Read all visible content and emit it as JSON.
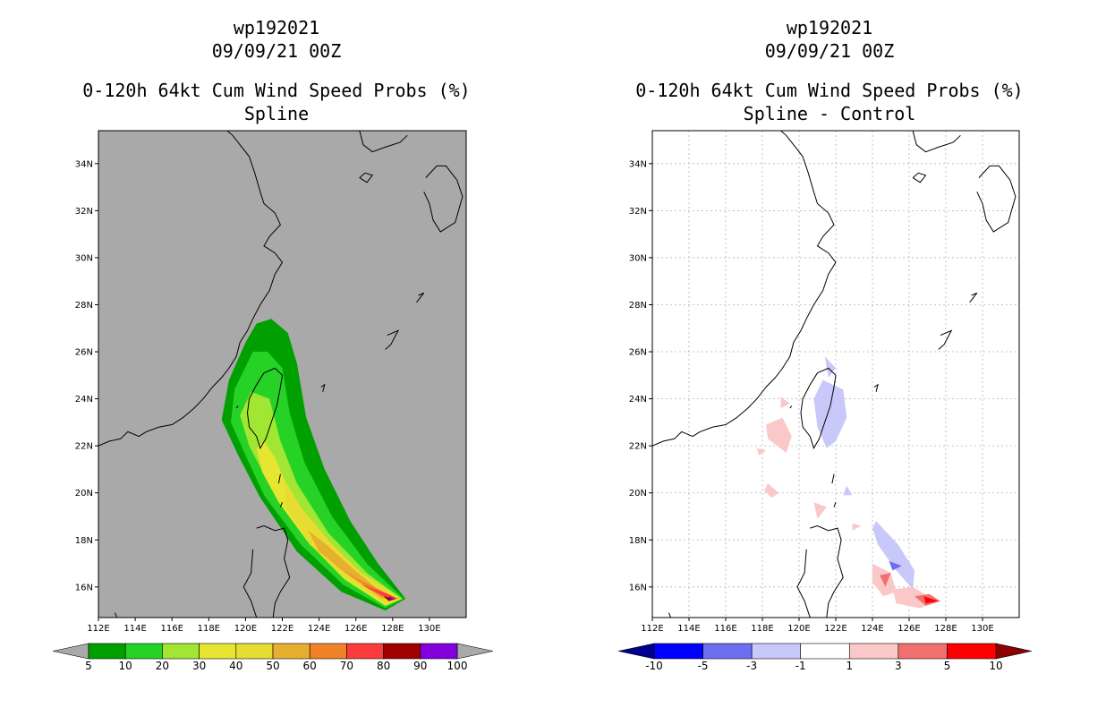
{
  "left_panel": {
    "title_lines": [
      "wp192021",
      "09/09/21 00Z",
      "",
      "0-120h 64kt Cum Wind Speed Probs (%)",
      "Spline"
    ]
  },
  "right_panel": {
    "title_lines": [
      "wp192021",
      "09/09/21 00Z",
      "",
      "0-120h 64kt Cum Wind Speed Probs (%)",
      "Spline - Control"
    ]
  },
  "chart_data": [
    {
      "type": "heatmap",
      "name": "spline-probability-map",
      "title": "0-120h 64kt Cum Wind Speed Probs (%) - Spline",
      "storm": "wp192021",
      "datetime": "09/09/21 00Z",
      "xlim": [
        112,
        132
      ],
      "ylim": [
        14.7,
        35.4
      ],
      "x_ticks": [
        112,
        114,
        116,
        118,
        120,
        122,
        124,
        126,
        128,
        130
      ],
      "x_tick_labels": [
        "112E",
        "114E",
        "116E",
        "118E",
        "120E",
        "122E",
        "124E",
        "126E",
        "128E",
        "130E"
      ],
      "y_ticks": [
        16,
        18,
        20,
        22,
        24,
        26,
        28,
        30,
        32,
        34
      ],
      "y_tick_labels": [
        "16N",
        "18N",
        "20N",
        "22N",
        "24N",
        "26N",
        "28N",
        "30N",
        "32N",
        "34N"
      ],
      "grid": false,
      "background": "#a9a9a9",
      "colorbar": {
        "labels": [
          "5",
          "10",
          "20",
          "30",
          "40",
          "50",
          "60",
          "70",
          "80",
          "90",
          "100"
        ],
        "colors": [
          "#00a000",
          "#26d226",
          "#a0e632",
          "#e6e632",
          "#e6dc32",
          "#e6af2d",
          "#f08228",
          "#fa3c3c",
          "#a00000",
          "#8200dc"
        ],
        "end_colors": [
          "#a9a9a9",
          "#a9a9a9"
        ]
      },
      "contour_levels": [
        {
          "level": 5,
          "color": "#00a000",
          "path": [
            [
              120.6,
              27.2
            ],
            [
              121.4,
              27.4
            ],
            [
              122.3,
              26.8
            ],
            [
              122.8,
              25.5
            ],
            [
              123.3,
              23.2
            ],
            [
              124.3,
              21.0
            ],
            [
              125.7,
              18.8
            ],
            [
              127.2,
              17.0
            ],
            [
              128.7,
              15.5
            ],
            [
              127.6,
              15.0
            ],
            [
              125.2,
              15.8
            ],
            [
              122.8,
              17.5
            ],
            [
              120.8,
              19.8
            ],
            [
              119.6,
              21.6
            ],
            [
              118.7,
              23.1
            ],
            [
              119.1,
              24.8
            ],
            [
              120.0,
              26.4
            ]
          ]
        },
        {
          "level": 10,
          "color": "#26d226",
          "path": [
            [
              120.4,
              26.0
            ],
            [
              121.2,
              26.0
            ],
            [
              122.0,
              25.3
            ],
            [
              122.4,
              23.4
            ],
            [
              123.2,
              21.3
            ],
            [
              124.7,
              19.0
            ],
            [
              126.6,
              17.0
            ],
            [
              128.6,
              15.5
            ],
            [
              127.6,
              15.1
            ],
            [
              125.3,
              16.1
            ],
            [
              123.0,
              17.8
            ],
            [
              121.0,
              19.9
            ],
            [
              120.0,
              21.6
            ],
            [
              119.2,
              23.0
            ],
            [
              119.4,
              24.4
            ]
          ]
        },
        {
          "level": 20,
          "color": "#a0e632",
          "path": [
            [
              120.3,
              24.3
            ],
            [
              121.3,
              24.0
            ],
            [
              121.9,
              22.2
            ],
            [
              122.8,
              20.4
            ],
            [
              124.5,
              18.3
            ],
            [
              126.6,
              16.6
            ],
            [
              128.5,
              15.5
            ],
            [
              127.6,
              15.2
            ],
            [
              125.4,
              16.3
            ],
            [
              123.3,
              18.0
            ],
            [
              121.4,
              20.2
            ],
            [
              120.2,
              22.0
            ],
            [
              119.7,
              23.3
            ]
          ]
        },
        {
          "level": 30,
          "color": "#e6e632",
          "path": [
            [
              121.0,
              22.2
            ],
            [
              121.6,
              21.5
            ],
            [
              122.4,
              20.0
            ],
            [
              124.1,
              18.2
            ],
            [
              126.3,
              16.6
            ],
            [
              128.5,
              15.5
            ],
            [
              127.6,
              15.2
            ],
            [
              125.3,
              16.4
            ],
            [
              123.4,
              17.9
            ],
            [
              121.8,
              19.6
            ],
            [
              120.9,
              20.9
            ],
            [
              120.6,
              21.9
            ]
          ]
        },
        {
          "level": 40,
          "color": "#e6dc32",
          "path": [
            [
              122.1,
              20.6
            ],
            [
              123.0,
              19.4
            ],
            [
              124.6,
              17.9
            ],
            [
              126.4,
              16.5
            ],
            [
              128.5,
              15.5
            ],
            [
              127.6,
              15.3
            ],
            [
              125.3,
              16.5
            ],
            [
              123.5,
              17.8
            ],
            [
              122.2,
              19.4
            ]
          ]
        },
        {
          "level": 50,
          "color": "#e6af2d",
          "path": [
            [
              123.4,
              18.4
            ],
            [
              124.4,
              17.8
            ],
            [
              125.8,
              16.8
            ],
            [
              127.5,
              15.7
            ],
            [
              128.4,
              15.5
            ],
            [
              127.4,
              15.5
            ],
            [
              125.6,
              16.5
            ],
            [
              124.0,
              17.5
            ]
          ]
        },
        {
          "level": 60,
          "color": "#f08228",
          "path": [
            [
              124.7,
              17.0
            ],
            [
              126.2,
              16.3
            ],
            [
              128.3,
              15.5
            ],
            [
              127.4,
              15.6
            ],
            [
              125.5,
              16.6
            ]
          ]
        },
        {
          "level": 70,
          "color": "#fa3c3c",
          "path": [
            [
              126.3,
              16.1
            ],
            [
              127.4,
              15.8
            ],
            [
              128.3,
              15.5
            ],
            [
              127.5,
              15.6
            ]
          ]
        },
        {
          "level": 80,
          "color": "#a00000",
          "path": [
            [
              127.5,
              15.6
            ],
            [
              128.2,
              15.5
            ],
            [
              127.8,
              15.4
            ]
          ]
        },
        {
          "level": 90,
          "color": "#8200dc",
          "path": [
            [
              127.8,
              15.6
            ],
            [
              128.1,
              15.5
            ],
            [
              127.9,
              15.45
            ]
          ]
        }
      ]
    },
    {
      "type": "heatmap",
      "name": "spline-minus-control-map",
      "title": "0-120h 64kt Cum Wind Speed Probs (%) - Spline - Control",
      "storm": "wp192021",
      "datetime": "09/09/21 00Z",
      "xlim": [
        112,
        132
      ],
      "ylim": [
        14.7,
        35.4
      ],
      "x_ticks": [
        112,
        114,
        116,
        118,
        120,
        122,
        124,
        126,
        128,
        130
      ],
      "x_tick_labels": [
        "112E",
        "114E",
        "116E",
        "118E",
        "120E",
        "122E",
        "124E",
        "126E",
        "128E",
        "130E"
      ],
      "y_ticks": [
        16,
        18,
        20,
        22,
        24,
        26,
        28,
        30,
        32,
        34
      ],
      "y_tick_labels": [
        "16N",
        "18N",
        "20N",
        "22N",
        "24N",
        "26N",
        "28N",
        "30N",
        "32N",
        "34N"
      ],
      "grid": true,
      "background": "#ffffff",
      "colorbar": {
        "labels": [
          "-10",
          "-5",
          "-3",
          "-1",
          "1",
          "3",
          "5",
          "10"
        ],
        "colors": [
          "#0000ff",
          "#6e6ef0",
          "#c8c8fa",
          "#ffffff",
          "#fac8c8",
          "#f07070",
          "#ff0000"
        ],
        "end_colors": [
          "#00008c",
          "#8c0000"
        ]
      },
      "difference_regions": [
        {
          "level": "-3 to -1",
          "color": "#c8c8fa",
          "path": [
            [
              121.4,
              25.8
            ],
            [
              122.0,
              25.3
            ],
            [
              121.6,
              24.9
            ]
          ]
        },
        {
          "level": "-3 to -1",
          "color": "#c8c8fa",
          "path": [
            [
              121.3,
              24.8
            ],
            [
              122.4,
              24.4
            ],
            [
              122.6,
              23.2
            ],
            [
              122.0,
              22.2
            ],
            [
              121.5,
              21.9
            ],
            [
              121.0,
              22.8
            ],
            [
              120.8,
              24.0
            ]
          ]
        },
        {
          "level": "-3 to -1",
          "color": "#c8c8fa",
          "path": [
            [
              122.6,
              20.3
            ],
            [
              122.9,
              19.9
            ],
            [
              122.4,
              19.9
            ]
          ]
        },
        {
          "level": "-3 to -1",
          "color": "#c8c8fa",
          "path": [
            [
              124.2,
              18.8
            ],
            [
              125.4,
              17.8
            ],
            [
              126.3,
              16.7
            ],
            [
              126.2,
              15.9
            ],
            [
              125.3,
              16.7
            ],
            [
              124.3,
              17.8
            ],
            [
              124.0,
              18.5
            ]
          ]
        },
        {
          "level": "-5 to -3",
          "color": "#6e6ef0",
          "path": [
            [
              124.9,
              17.1
            ],
            [
              125.6,
              16.9
            ],
            [
              125.1,
              16.7
            ]
          ]
        },
        {
          "level": "1 to 3",
          "color": "#fac8c8",
          "path": [
            [
              119.0,
              24.1
            ],
            [
              119.5,
              23.8
            ],
            [
              119.0,
              23.6
            ]
          ]
        },
        {
          "level": "1 to 3",
          "color": "#fac8c8",
          "path": [
            [
              118.2,
              22.9
            ],
            [
              119.1,
              23.2
            ],
            [
              119.6,
              22.4
            ],
            [
              119.3,
              21.7
            ],
            [
              118.3,
              22.3
            ]
          ]
        },
        {
          "level": "1 to 3",
          "color": "#fac8c8",
          "path": [
            [
              117.7,
              21.9
            ],
            [
              118.2,
              21.8
            ],
            [
              117.8,
              21.6
            ]
          ]
        },
        {
          "level": "1 to 3",
          "color": "#fac8c8",
          "path": [
            [
              118.3,
              20.4
            ],
            [
              118.9,
              20.0
            ],
            [
              118.5,
              19.8
            ],
            [
              118.1,
              20.1
            ]
          ]
        },
        {
          "level": "1 to 3",
          "color": "#fac8c8",
          "path": [
            [
              120.8,
              19.6
            ],
            [
              121.5,
              19.4
            ],
            [
              121.0,
              18.9
            ]
          ]
        },
        {
          "level": "1 to 3",
          "color": "#fac8c8",
          "path": [
            [
              122.9,
              18.7
            ],
            [
              123.4,
              18.6
            ],
            [
              122.9,
              18.4
            ]
          ]
        },
        {
          "level": "1 to 3",
          "color": "#fac8c8",
          "path": [
            [
              124.0,
              17.0
            ],
            [
              125.0,
              16.6
            ],
            [
              125.3,
              15.8
            ],
            [
              124.6,
              15.6
            ],
            [
              124.0,
              16.2
            ]
          ]
        },
        {
          "level": "1 to 3",
          "color": "#fac8c8",
          "path": [
            [
              125.1,
              15.9
            ],
            [
              126.2,
              16.0
            ],
            [
              127.5,
              15.4
            ],
            [
              126.6,
              15.1
            ],
            [
              125.3,
              15.3
            ]
          ]
        },
        {
          "level": "3 to 5",
          "color": "#f07070",
          "path": [
            [
              124.4,
              16.5
            ],
            [
              125.0,
              16.6
            ],
            [
              124.7,
              16.0
            ]
          ]
        },
        {
          "level": "3 to 5",
          "color": "#f07070",
          "path": [
            [
              126.3,
              15.6
            ],
            [
              127.1,
              15.7
            ],
            [
              127.7,
              15.4
            ],
            [
              126.9,
              15.2
            ]
          ]
        },
        {
          "level": "5 to 10",
          "color": "#ff0000",
          "path": [
            [
              126.8,
              15.6
            ],
            [
              127.6,
              15.4
            ],
            [
              126.9,
              15.3
            ]
          ]
        }
      ]
    }
  ]
}
